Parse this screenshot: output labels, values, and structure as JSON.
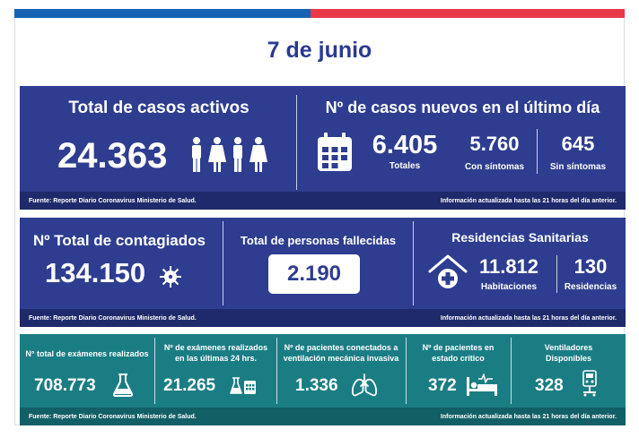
{
  "date": "7 de junio",
  "activos": {
    "title": "Total de casos activos",
    "value": "24.363"
  },
  "nuevos": {
    "title": "Nº de casos nuevos en el último día",
    "totales_value": "6.405",
    "totales_label": "Totales",
    "con_value": "5.760",
    "con_label": "Con síntomas",
    "sin_value": "645",
    "sin_label": "Sin síntomas"
  },
  "footer1": {
    "source": "Fuente: Reporte Diario Coronavirus Ministerio de Salud.",
    "info": "Información actualizada hasta las 21 horas  del día anterior."
  },
  "contagiados": {
    "title": "Nº Total de contagiados",
    "value": "134.150"
  },
  "fallecidos": {
    "title": "Total de personas fallecidas",
    "value": "2.190"
  },
  "residencias": {
    "title": "Residencias Sanitarias",
    "hab_value": "11.812",
    "hab_label": "Habitaciones",
    "res_value": "130",
    "res_label": "Residencias"
  },
  "footer2": {
    "source": "Fuente: Reporte Diario Coronavirus Ministerio de Salud.",
    "info": "Información actualizada hasta las 21 horas  del día anterior."
  },
  "examenes": {
    "title": "N° total de exámenes realizados",
    "value": "708.773"
  },
  "examenes24": {
    "title_line1": "Nº de exámenes realizados",
    "title_line2": "en las últimas 24 hrs.",
    "value": "21.265"
  },
  "ventilacion": {
    "title_line1": "Nº de pacientes conectados a",
    "title_line2": "ventilación mecánica invasiva",
    "value": "1.336"
  },
  "critico": {
    "title_line1": "Nº de pacientes  en",
    "title_line2": "estado crítico",
    "value": "372"
  },
  "ventiladores": {
    "title_line1": "Ventiladores",
    "title_line2": "Disponibles",
    "value": "328"
  },
  "footer3": {
    "source": "Fuente: Reporte Diario Coronavirus Ministerio de Salud.",
    "info": "Información actualizada hasta las 21 horas  del día anterior."
  },
  "icons": {
    "people": "people-icon",
    "calendar": "calendar-icon",
    "virus": "virus-icon",
    "house_cross": "house-medical-icon",
    "flask": "flask-icon",
    "lab_calendar": "lab-calendar-icon",
    "lungs": "lungs-icon",
    "bed": "hospital-bed-icon",
    "ventilator": "ventilator-icon"
  },
  "colors": {
    "blue_panel": "#2e3d8f",
    "teal_panel": "#1b7d84",
    "top_blue": "#1663b3",
    "top_red": "#e8384a"
  }
}
